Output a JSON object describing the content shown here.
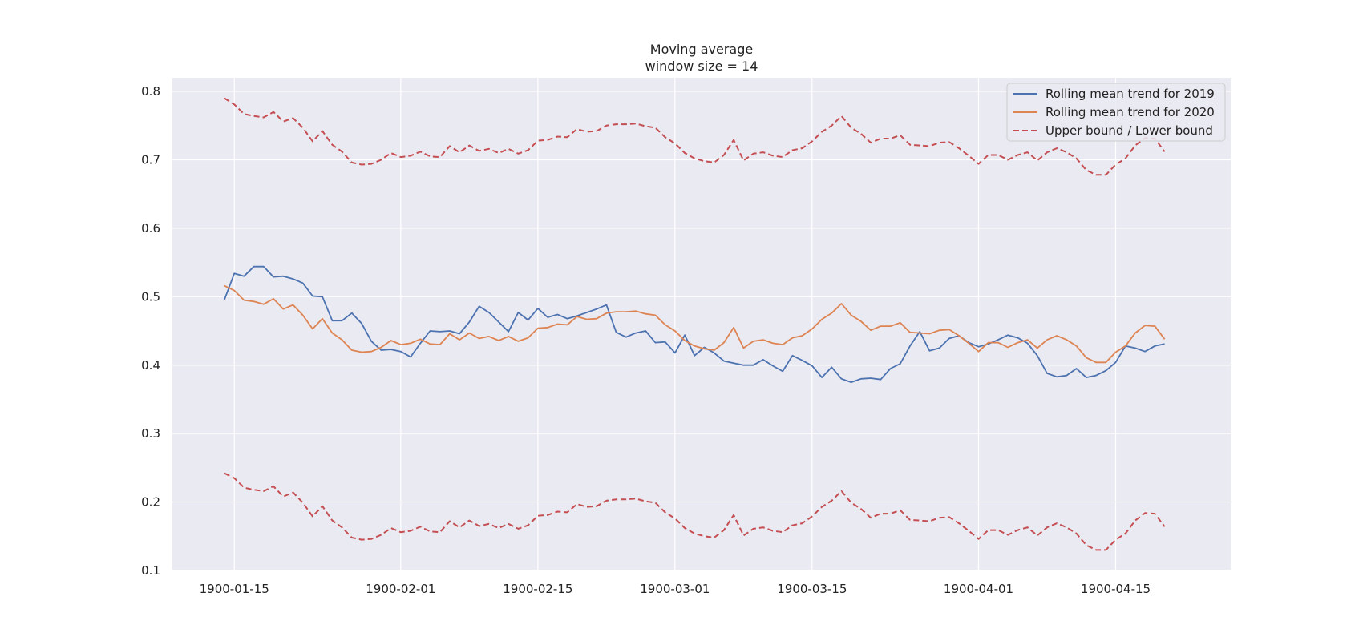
{
  "chart_data": {
    "type": "line",
    "title": [
      "Moving average",
      "window size = 14"
    ],
    "xlabel": "",
    "ylabel": "",
    "x_start": "1900-01-14",
    "x_end": "1900-04-22",
    "xticks": [
      "1900-01-15",
      "1900-02-01",
      "1900-02-15",
      "1900-03-01",
      "1900-03-15",
      "1900-04-01",
      "1900-04-15"
    ],
    "yticks": [
      0.1,
      0.2,
      0.3,
      0.4,
      0.5,
      0.6,
      0.7,
      0.8
    ],
    "ylim": [
      0.1,
      0.82
    ],
    "grid": true,
    "legend_position": "top-right",
    "series": [
      {
        "name": "Rolling mean trend for 2019",
        "color": "#4c72b0",
        "style": "solid",
        "values": [
          0.496,
          0.534,
          0.53,
          0.544,
          0.544,
          0.529,
          0.53,
          0.526,
          0.52,
          0.501,
          0.5,
          0.465,
          0.465,
          0.476,
          0.461,
          0.435,
          0.422,
          0.423,
          0.42,
          0.412,
          0.432,
          0.45,
          0.449,
          0.45,
          0.446,
          0.463,
          0.486,
          0.477,
          0.463,
          0.449,
          0.477,
          0.466,
          0.483,
          0.47,
          0.474,
          0.468,
          0.472,
          0.477,
          0.482,
          0.488,
          0.448,
          0.441,
          0.447,
          0.45,
          0.433,
          0.434,
          0.418,
          0.444,
          0.414,
          0.426,
          0.418,
          0.406,
          0.403,
          0.4,
          0.4,
          0.408,
          0.399,
          0.391,
          0.414,
          0.407,
          0.399,
          0.382,
          0.397,
          0.38,
          0.375,
          0.38,
          0.381,
          0.379,
          0.395,
          0.402,
          0.428,
          0.449,
          0.421,
          0.425,
          0.439,
          0.443,
          0.433,
          0.427,
          0.431,
          0.437,
          0.444,
          0.44,
          0.432,
          0.414,
          0.388,
          0.383,
          0.385,
          0.395,
          0.382,
          0.385,
          0.392,
          0.404,
          0.428,
          0.425,
          0.42,
          0.428,
          0.431
        ]
      },
      {
        "name": "Rolling mean trend for 2020",
        "color": "#dd8452",
        "style": "solid",
        "values": [
          0.516,
          0.509,
          0.495,
          0.493,
          0.489,
          0.497,
          0.482,
          0.488,
          0.473,
          0.453,
          0.468,
          0.447,
          0.437,
          0.422,
          0.419,
          0.42,
          0.426,
          0.436,
          0.43,
          0.432,
          0.438,
          0.431,
          0.43,
          0.446,
          0.437,
          0.447,
          0.439,
          0.442,
          0.436,
          0.442,
          0.435,
          0.44,
          0.454,
          0.455,
          0.46,
          0.459,
          0.471,
          0.467,
          0.468,
          0.476,
          0.478,
          0.478,
          0.479,
          0.475,
          0.473,
          0.459,
          0.45,
          0.436,
          0.428,
          0.424,
          0.422,
          0.433,
          0.455,
          0.425,
          0.435,
          0.437,
          0.432,
          0.43,
          0.44,
          0.443,
          0.453,
          0.467,
          0.476,
          0.49,
          0.473,
          0.464,
          0.451,
          0.457,
          0.457,
          0.462,
          0.448,
          0.447,
          0.446,
          0.451,
          0.452,
          0.443,
          0.432,
          0.42,
          0.433,
          0.433,
          0.426,
          0.433,
          0.437,
          0.425,
          0.437,
          0.443,
          0.437,
          0.428,
          0.411,
          0.404,
          0.404,
          0.419,
          0.428,
          0.447,
          0.458,
          0.457,
          0.438
        ]
      },
      {
        "name": "Upper bound / Lower bound",
        "color": "#c44e52",
        "style": "dashed",
        "values": [
          0.79,
          0.781,
          0.767,
          0.764,
          0.762,
          0.77,
          0.756,
          0.761,
          0.747,
          0.727,
          0.742,
          0.722,
          0.712,
          0.696,
          0.693,
          0.694,
          0.7,
          0.71,
          0.704,
          0.706,
          0.712,
          0.705,
          0.704,
          0.72,
          0.711,
          0.721,
          0.713,
          0.716,
          0.71,
          0.716,
          0.709,
          0.714,
          0.728,
          0.729,
          0.734,
          0.733,
          0.745,
          0.741,
          0.742,
          0.75,
          0.752,
          0.752,
          0.753,
          0.749,
          0.747,
          0.733,
          0.724,
          0.71,
          0.702,
          0.698,
          0.696,
          0.707,
          0.729,
          0.699,
          0.709,
          0.711,
          0.706,
          0.704,
          0.714,
          0.717,
          0.727,
          0.741,
          0.75,
          0.764,
          0.747,
          0.738,
          0.725,
          0.731,
          0.731,
          0.736,
          0.722,
          0.721,
          0.72,
          0.725,
          0.726,
          0.717,
          0.706,
          0.694,
          0.707,
          0.707,
          0.7,
          0.707,
          0.711,
          0.699,
          0.711,
          0.717,
          0.711,
          0.702,
          0.685,
          0.678,
          0.678,
          0.693,
          0.702,
          0.721,
          0.732,
          0.731,
          0.712
        ]
      },
      {
        "name": "Upper bound / Lower bound",
        "color": "#c44e52",
        "style": "dashed",
        "values": [
          0.242,
          0.235,
          0.221,
          0.218,
          0.216,
          0.223,
          0.208,
          0.214,
          0.199,
          0.179,
          0.194,
          0.173,
          0.163,
          0.148,
          0.145,
          0.146,
          0.152,
          0.162,
          0.156,
          0.158,
          0.164,
          0.157,
          0.156,
          0.172,
          0.163,
          0.173,
          0.165,
          0.168,
          0.162,
          0.168,
          0.161,
          0.166,
          0.18,
          0.181,
          0.186,
          0.185,
          0.197,
          0.193,
          0.194,
          0.202,
          0.204,
          0.204,
          0.205,
          0.201,
          0.199,
          0.185,
          0.176,
          0.162,
          0.154,
          0.15,
          0.148,
          0.159,
          0.181,
          0.151,
          0.161,
          0.163,
          0.158,
          0.156,
          0.166,
          0.169,
          0.179,
          0.193,
          0.202,
          0.216,
          0.199,
          0.19,
          0.177,
          0.183,
          0.183,
          0.188,
          0.174,
          0.173,
          0.172,
          0.177,
          0.178,
          0.169,
          0.158,
          0.146,
          0.159,
          0.159,
          0.152,
          0.159,
          0.163,
          0.151,
          0.163,
          0.169,
          0.163,
          0.154,
          0.137,
          0.13,
          0.13,
          0.145,
          0.154,
          0.173,
          0.184,
          0.183,
          0.164
        ]
      }
    ],
    "legend": [
      {
        "label": "Rolling mean trend for 2019",
        "color": "#4c72b0",
        "style": "solid"
      },
      {
        "label": "Rolling mean trend for 2020",
        "color": "#dd8452",
        "style": "solid"
      },
      {
        "label": "Upper bound / Lower bound",
        "color": "#c44e52",
        "style": "dashed"
      }
    ],
    "background_color": "#eaeaf2",
    "grid_color": "#ffffff"
  }
}
